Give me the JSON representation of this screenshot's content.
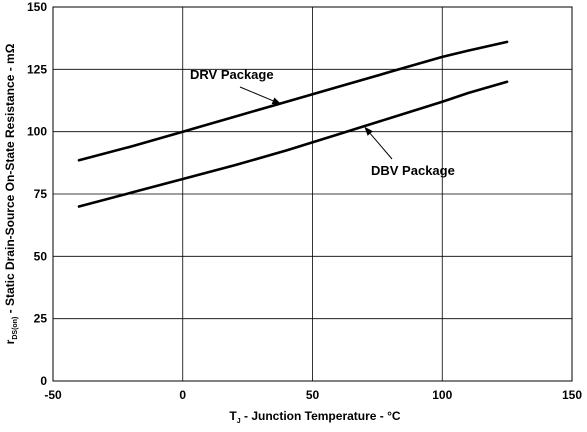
{
  "chart_data": {
    "type": "line",
    "xlabel": {
      "main": "T",
      "sub": "J",
      "rest": " - Junction Temperature - °C"
    },
    "ylabel": {
      "main": "r",
      "sub": "DS(on)",
      "rest": " - Static Drain-Source On-State Resistance - mΩ"
    },
    "xlim": [
      -50,
      150
    ],
    "ylim": [
      0,
      150
    ],
    "xticks": [
      -50,
      0,
      50,
      100,
      150
    ],
    "yticks": [
      0,
      25,
      50,
      75,
      100,
      125,
      150
    ],
    "grid": true,
    "series": [
      {
        "name": "DRV Package",
        "x": [
          -40,
          -20,
          0,
          20,
          40,
          60,
          80,
          100,
          110,
          125
        ],
        "y": [
          88.5,
          94,
          100,
          106,
          112,
          118,
          124,
          130,
          132.5,
          136
        ]
      },
      {
        "name": "DBV Package",
        "x": [
          -40,
          -20,
          0,
          20,
          40,
          60,
          80,
          100,
          110,
          125
        ],
        "y": [
          70,
          75.5,
          81,
          86.5,
          92.5,
          99,
          105.5,
          112,
          115.5,
          120
        ]
      }
    ],
    "annotations": [
      {
        "text": "DRV Package",
        "series": 0,
        "point_x": 38,
        "point_y": 111
      },
      {
        "text": "DBV Package",
        "series": 1,
        "point_x": 70,
        "point_y": 102
      }
    ]
  }
}
